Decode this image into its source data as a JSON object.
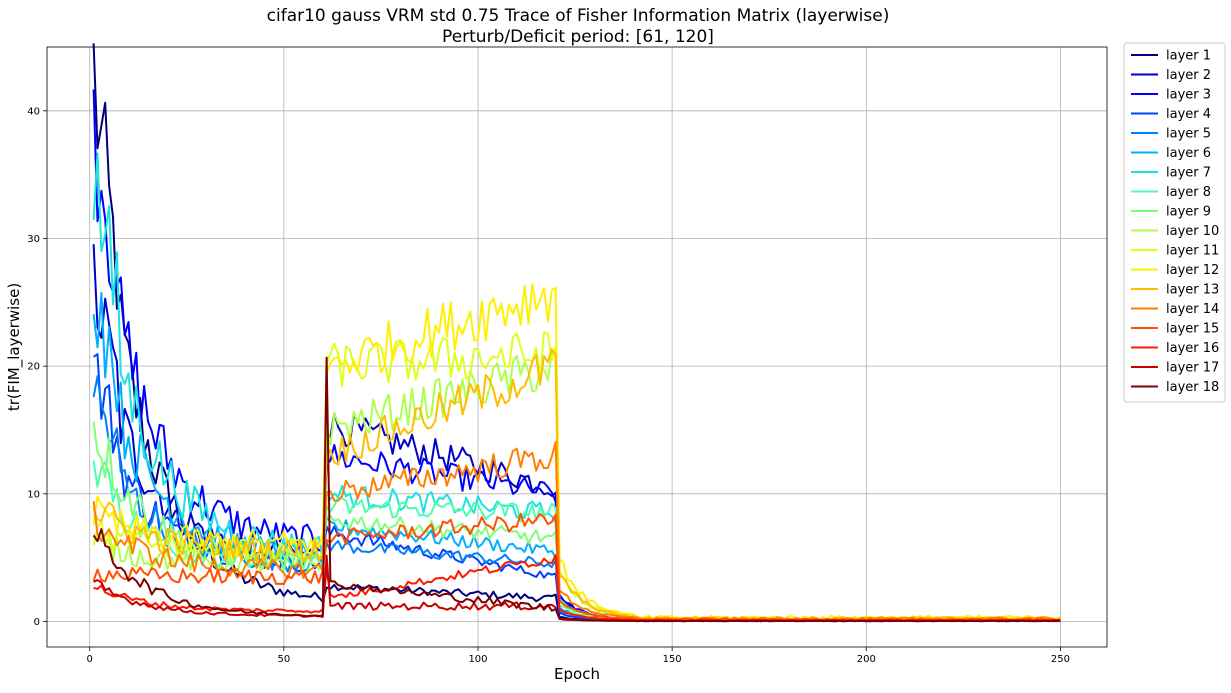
{
  "chart_data": {
    "type": "line",
    "title_line1": "cifar10 gauss VRM std 0.75 Trace of Fisher Information Matrix (layerwise)",
    "title_line2": "Perturb/Deficit period: [61, 120]",
    "xlabel": "Epoch",
    "ylabel": "tr(FIM_layerwise)",
    "xlim": [
      -11,
      262
    ],
    "ylim": [
      -2,
      45
    ],
    "xticks": [
      0,
      50,
      100,
      150,
      200,
      250
    ],
    "yticks": [
      0,
      10,
      20,
      30,
      40
    ],
    "grid": true,
    "legend_position": "outside-right",
    "series": [
      {
        "name": "layer 1",
        "color": "#00007f",
        "start": 37.3,
        "p1": 1.5,
        "p2": 2.8,
        "p2end": 1.8,
        "p3": 0.05
      },
      {
        "name": "layer 2",
        "color": "#0000c8",
        "start": 23.2,
        "p1": 5.0,
        "p2": 15.5,
        "p2end": 10.5,
        "p3": 0.05
      },
      {
        "name": "layer 3",
        "color": "#0000ff",
        "start": 35.0,
        "p1": 6.0,
        "p2": 13.0,
        "p2end": 10.0,
        "p3": 0.05
      },
      {
        "name": "layer 4",
        "color": "#0040ff",
        "start": 17.5,
        "p1": 4.5,
        "p2": 7.0,
        "p2end": 3.5,
        "p3": 0.06
      },
      {
        "name": "layer 5",
        "color": "#0080ff",
        "start": 16.0,
        "p1": 4.5,
        "p2": 6.0,
        "p2end": 4.5,
        "p3": 0.06
      },
      {
        "name": "layer 6",
        "color": "#00b0ff",
        "start": 24.0,
        "p1": 5.0,
        "p2": 7.5,
        "p2end": 5.5,
        "p3": 0.07
      },
      {
        "name": "layer 7",
        "color": "#1ce2e0",
        "start": 31.0,
        "p1": 5.5,
        "p2": 10.0,
        "p2end": 8.5,
        "p3": 0.08
      },
      {
        "name": "layer 8",
        "color": "#4dffad",
        "start": 11.5,
        "p1": 4.5,
        "p2": 9.0,
        "p2end": 8.5,
        "p3": 0.08
      },
      {
        "name": "layer 9",
        "color": "#7dff7a",
        "start": 15.5,
        "p1": 4.5,
        "p2": 8.0,
        "p2end": 6.5,
        "p3": 0.09
      },
      {
        "name": "layer 10",
        "color": "#adff49",
        "start": 6.2,
        "p1": 4.5,
        "p2": 15.0,
        "p2end": 20.0,
        "p3": 0.12
      },
      {
        "name": "layer 11",
        "color": "#ddff1a",
        "start": 7.0,
        "p1": 5.5,
        "p2": 20.0,
        "p2end": 21.0,
        "p3": 0.2
      },
      {
        "name": "layer 12",
        "color": "#fff000",
        "start": 8.5,
        "p1": 6.0,
        "p2": 20.0,
        "p2end": 26.0,
        "p3": 0.3
      },
      {
        "name": "layer 13",
        "color": "#ffbd00",
        "start": 9.0,
        "p1": 5.5,
        "p2": 13.0,
        "p2end": 20.0,
        "p3": 0.25
      },
      {
        "name": "layer 14",
        "color": "#ff8000",
        "start": 8.0,
        "p1": 4.0,
        "p2": 10.0,
        "p2end": 13.0,
        "p3": 0.2
      },
      {
        "name": "layer 15",
        "color": "#ff5000",
        "start": 3.8,
        "p1": 3.5,
        "p2": 6.5,
        "p2end": 8.0,
        "p3": 0.15
      },
      {
        "name": "layer 16",
        "color": "#ff1800",
        "start": 2.8,
        "p1": 0.8,
        "p2": 1.8,
        "p2end": 5.0,
        "p3": 0.08
      },
      {
        "name": "layer 17",
        "color": "#c80000",
        "start": 3.0,
        "p1": 0.4,
        "p2": 1.2,
        "p2end": 1.2,
        "p3": 0.05
      },
      {
        "name": "layer 18",
        "color": "#7f0000",
        "start": 7.2,
        "p1": 0.4,
        "p2": 3.0,
        "p2end": 1.0,
        "p3": 0.04
      }
    ]
  }
}
